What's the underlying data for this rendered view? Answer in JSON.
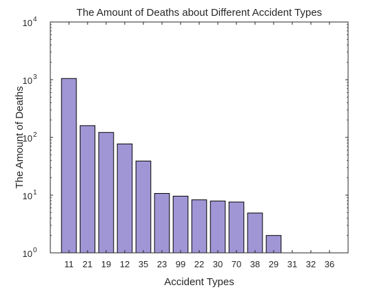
{
  "chart_data": {
    "type": "bar",
    "title": "The Amount of Deaths about Different Accident Types",
    "xlabel": "Accident Types",
    "ylabel": "The Amount of Deaths",
    "yscale": "log",
    "ylim": [
      1,
      10000
    ],
    "y_ticks": [
      {
        "value": 1,
        "base": "10",
        "exp": "0"
      },
      {
        "value": 10,
        "base": "10",
        "exp": "1"
      },
      {
        "value": 100,
        "base": "10",
        "exp": "2"
      },
      {
        "value": 1000,
        "base": "10",
        "exp": "3"
      },
      {
        "value": 10000,
        "base": "10",
        "exp": "4"
      }
    ],
    "categories": [
      "11",
      "21",
      "19",
      "12",
      "35",
      "23",
      "99",
      "22",
      "30",
      "70",
      "38",
      "29",
      "31",
      "32",
      "36"
    ],
    "values": [
      1050,
      160,
      122,
      77,
      39,
      10.7,
      9.6,
      8.3,
      7.9,
      7.6,
      4.9,
      2,
      1,
      1,
      1
    ],
    "bar_color": "#a096d6",
    "bar_edge_color": "#000000",
    "grid": false,
    "box": true
  }
}
